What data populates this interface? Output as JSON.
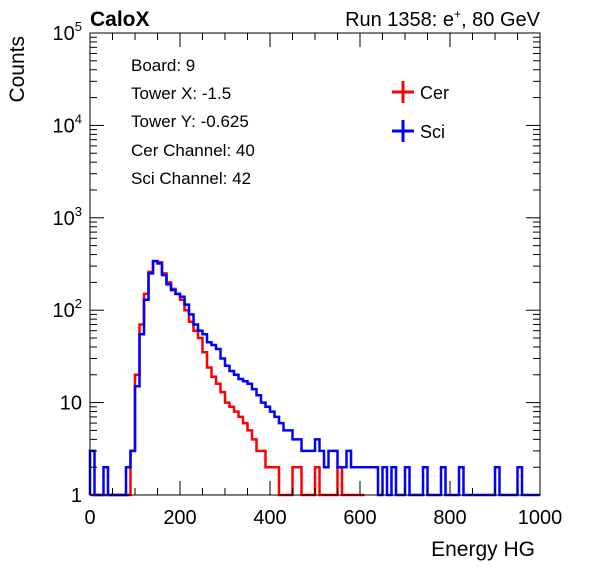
{
  "header": {
    "brand": "CaloX",
    "run_prefix": "Run 1358: e",
    "run_sup": "+",
    "run_suffix": ", 80 GeV"
  },
  "info": {
    "board": "Board: 9",
    "tower_x": "Tower X: -1.5",
    "tower_y": "Tower Y: -0.625",
    "cer_channel": "Cer Channel: 40",
    "sci_channel": "Sci Channel: 42"
  },
  "colors": {
    "cer": "#ff0000",
    "sci": "#0000ff",
    "axis": "#000000"
  },
  "chart_data": {
    "type": "line",
    "xlabel": "Energy HG",
    "ylabel": "Counts",
    "xlim": [
      0,
      1000
    ],
    "ylim": [
      1,
      100000
    ],
    "yscale": "log",
    "x_ticks": [
      "0",
      "200",
      "400",
      "600",
      "800",
      "1000"
    ],
    "y_ticks": [
      {
        "value": 1,
        "base": "1",
        "exp": ""
      },
      {
        "value": 10,
        "base": "10",
        "exp": ""
      },
      {
        "value": 100,
        "base": "10",
        "exp": "2"
      },
      {
        "value": 1000,
        "base": "10",
        "exp": "3"
      },
      {
        "value": 10000,
        "base": "10",
        "exp": "4"
      },
      {
        "value": 100000,
        "base": "10",
        "exp": "5"
      }
    ],
    "legend_position": "top-right",
    "series": [
      {
        "name": "Cer",
        "color": "#ff0000",
        "x": [
          0,
          10,
          20,
          30,
          40,
          50,
          60,
          70,
          80,
          90,
          100,
          110,
          120,
          130,
          140,
          150,
          160,
          170,
          180,
          190,
          200,
          210,
          220,
          230,
          240,
          250,
          260,
          270,
          280,
          290,
          300,
          310,
          320,
          330,
          340,
          350,
          360,
          370,
          380,
          390,
          400,
          410,
          420,
          430,
          440,
          450,
          460,
          470,
          480,
          490,
          500,
          510,
          520,
          530,
          540,
          550,
          560,
          570,
          580,
          590,
          600
        ],
        "y": [
          1,
          1,
          1,
          1,
          1,
          1,
          1,
          1,
          1,
          3,
          20,
          70,
          150,
          260,
          340,
          330,
          250,
          200,
          170,
          150,
          130,
          100,
          75,
          60,
          50,
          35,
          24,
          19,
          16,
          13,
          10,
          9,
          8,
          7,
          6,
          5,
          4,
          3,
          3,
          2,
          2,
          2,
          1,
          1,
          1,
          2,
          2,
          1,
          1,
          1,
          2,
          1,
          1,
          1,
          1,
          2,
          1,
          1,
          1,
          1,
          1
        ]
      },
      {
        "name": "Sci",
        "color": "#0000ff",
        "x": [
          0,
          10,
          20,
          30,
          40,
          50,
          60,
          70,
          80,
          90,
          100,
          110,
          120,
          130,
          140,
          150,
          160,
          170,
          180,
          190,
          200,
          210,
          220,
          230,
          240,
          250,
          260,
          270,
          280,
          290,
          300,
          310,
          320,
          330,
          340,
          350,
          360,
          370,
          380,
          390,
          400,
          410,
          420,
          430,
          440,
          450,
          460,
          470,
          480,
          490,
          500,
          510,
          520,
          530,
          540,
          550,
          560,
          570,
          580,
          590,
          600,
          610,
          620,
          630,
          640,
          650,
          660,
          670,
          680,
          690,
          700,
          710,
          720,
          730,
          740,
          750,
          760,
          770,
          780,
          790,
          800,
          810,
          820,
          830,
          840,
          850,
          860,
          870,
          880,
          890,
          900,
          910,
          920,
          930,
          940,
          950,
          960,
          970,
          980,
          990,
          1000
        ],
        "y": [
          3,
          1,
          1,
          2,
          1,
          1,
          1,
          1,
          2,
          3,
          15,
          55,
          130,
          250,
          340,
          320,
          240,
          190,
          165,
          150,
          140,
          115,
          90,
          70,
          60,
          55,
          45,
          42,
          38,
          30,
          25,
          22,
          20,
          18,
          17,
          16,
          14,
          12,
          10,
          9,
          8,
          7,
          6,
          5,
          5,
          4,
          4,
          3,
          3,
          3,
          4,
          3,
          2,
          3,
          3,
          2,
          2,
          3,
          2,
          2,
          2,
          2,
          2,
          2,
          1,
          2,
          1,
          2,
          1,
          1,
          2,
          1,
          1,
          1,
          2,
          1,
          1,
          1,
          2,
          1,
          1,
          1,
          2,
          1,
          1,
          1,
          1,
          1,
          1,
          1,
          2,
          1,
          1,
          1,
          1,
          2,
          1,
          1,
          1,
          1,
          1
        ]
      }
    ]
  }
}
